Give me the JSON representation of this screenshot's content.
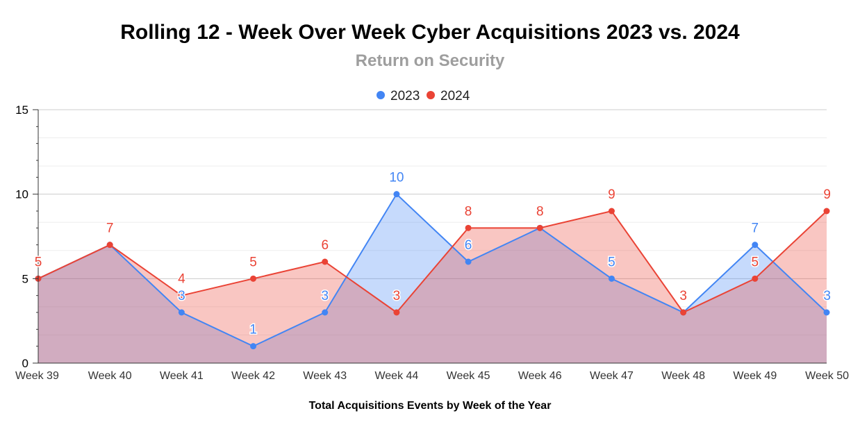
{
  "chart_data": {
    "type": "area",
    "title": "Rolling 12 - Week Over Week Cyber Acquisitions 2023 vs. 2024",
    "subtitle": "Return on Security",
    "xlabel": "Total Acquisitions Events by Week of the Year",
    "ylabel": "",
    "categories": [
      "Week 39",
      "Week 40",
      "Week 41",
      "Week 42",
      "Week 43",
      "Week 44",
      "Week 45",
      "Week 46",
      "Week 47",
      "Week 48",
      "Week 49",
      "Week 50"
    ],
    "ylim": [
      0,
      15
    ],
    "yticks": [
      0,
      5,
      10,
      15
    ],
    "grid": true,
    "legend_position": "top",
    "series": [
      {
        "name": "2023",
        "color": "#4285f4",
        "values": [
          5,
          7,
          3,
          1,
          3,
          10,
          6,
          8,
          5,
          3,
          7,
          3
        ]
      },
      {
        "name": "2024",
        "color": "#ea4335",
        "values": [
          5,
          7,
          4,
          5,
          6,
          3,
          8,
          8,
          9,
          3,
          5,
          9
        ]
      }
    ]
  }
}
